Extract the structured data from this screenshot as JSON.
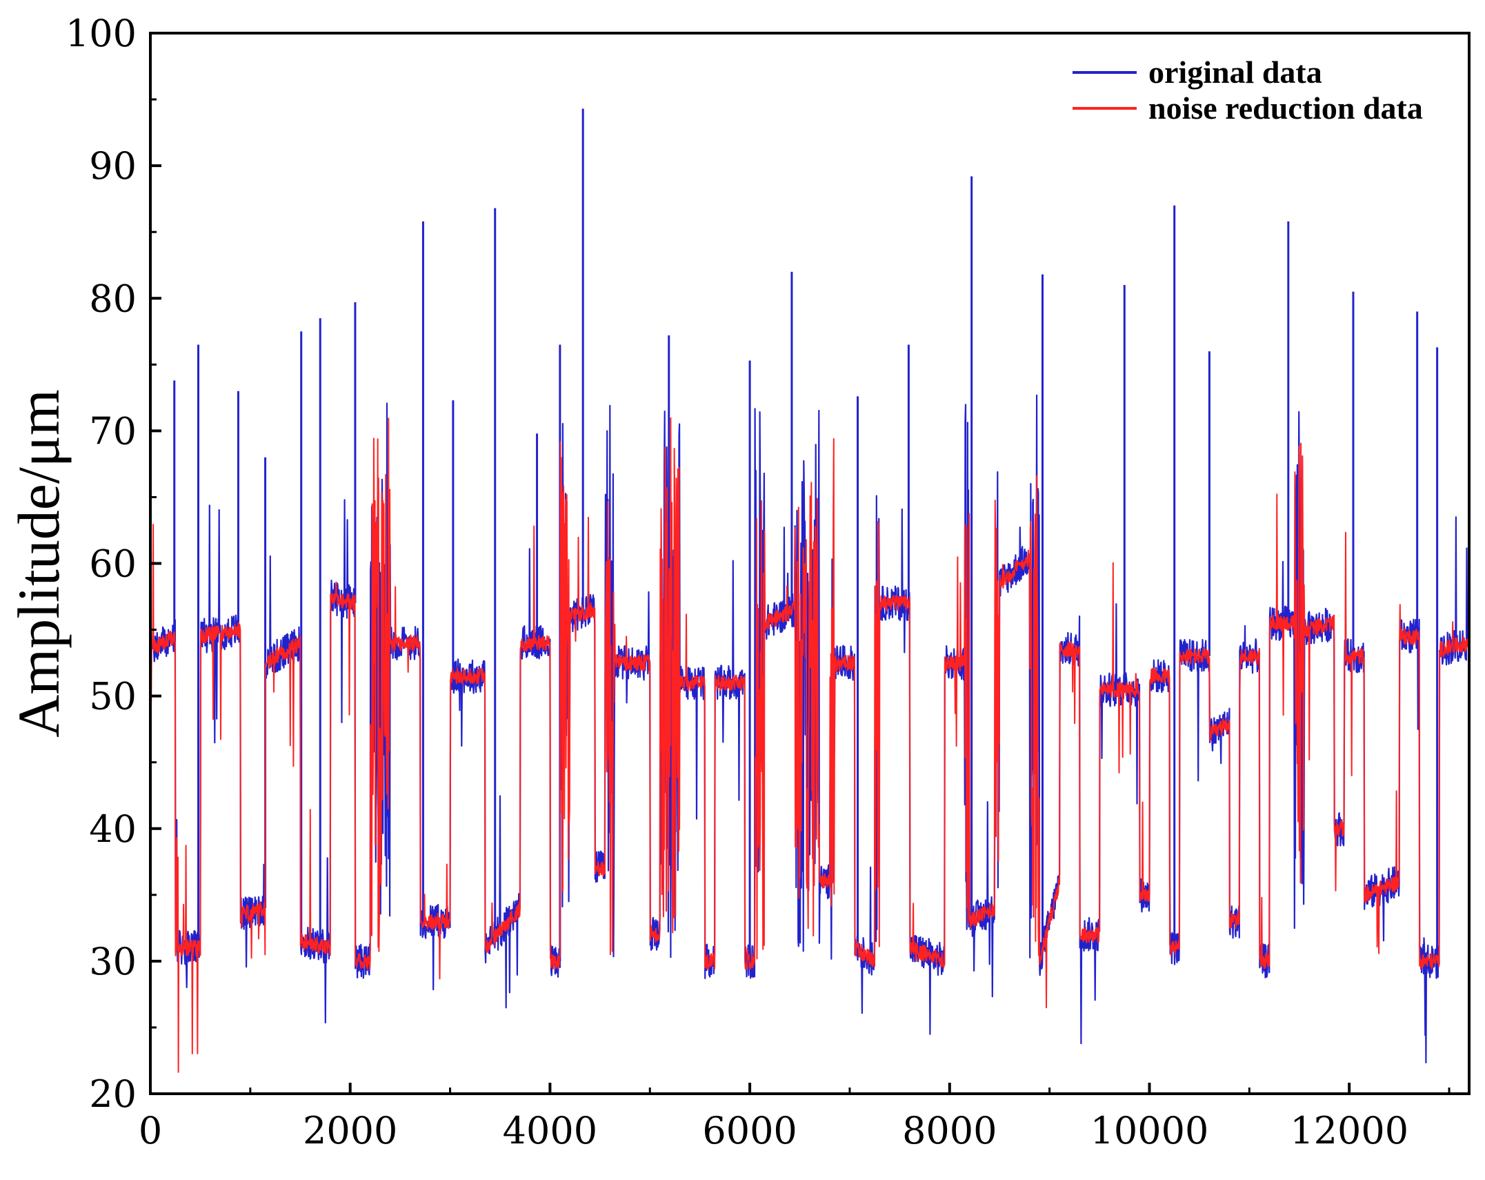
{
  "chart_data": {
    "type": "line",
    "title": "",
    "xlabel": "",
    "ylabel": "Amplitude/μm",
    "xlim": [
      0,
      13200
    ],
    "ylim": [
      20,
      100
    ],
    "xticks": [
      0,
      2000,
      4000,
      6000,
      8000,
      10000,
      12000
    ],
    "xticks_minor": [
      1000,
      3000,
      5000,
      7000,
      9000,
      11000,
      13000
    ],
    "yticks": [
      20,
      30,
      40,
      50,
      60,
      70,
      80,
      90,
      100
    ],
    "legend_position": "top-right",
    "colors": {
      "original": "#2222cc",
      "noise_reduction": "#ff2222",
      "axis": "#000000"
    },
    "series": [
      {
        "name": "original data",
        "color": "#2222cc"
      },
      {
        "name": "noise reduction data",
        "color": "#ff2222"
      }
    ],
    "baseline_segments": [
      {
        "x": [
          0,
          250
        ],
        "y": [
          53.5,
          54.5
        ]
      },
      {
        "x": [
          500,
          900
        ],
        "y": [
          54.5,
          55
        ]
      },
      {
        "x": [
          1150,
          1500
        ],
        "y": [
          52.5,
          54
        ]
      },
      {
        "x": [
          1800,
          2050
        ],
        "y": [
          57.5,
          57
        ]
      },
      {
        "x": [
          2400,
          2700
        ],
        "y": [
          54,
          54
        ]
      },
      {
        "x": [
          3000,
          3350
        ],
        "y": [
          51.5,
          51.5
        ]
      },
      {
        "x": [
          3700,
          4000
        ],
        "y": [
          54,
          54
        ]
      },
      {
        "x": [
          4200,
          4450
        ],
        "y": [
          56,
          56.5
        ]
      },
      {
        "x": [
          4650,
          5000
        ],
        "y": [
          52.5,
          52.5
        ]
      },
      {
        "x": [
          5300,
          5550
        ],
        "y": [
          51,
          51
        ]
      },
      {
        "x": [
          5650,
          5950
        ],
        "y": [
          51,
          51
        ]
      },
      {
        "x": [
          6150,
          6450
        ],
        "y": [
          55.5,
          56.5
        ]
      },
      {
        "x": [
          6850,
          7050
        ],
        "y": [
          52.5,
          52.5
        ]
      },
      {
        "x": [
          7300,
          7600
        ],
        "y": [
          57,
          57
        ]
      },
      {
        "x": [
          7950,
          8150
        ],
        "y": [
          52.5,
          52.5
        ]
      },
      {
        "x": [
          8500,
          8800
        ],
        "y": [
          58.5,
          60.5
        ]
      },
      {
        "x": [
          9100,
          9300
        ],
        "y": [
          53.5,
          53.5
        ]
      },
      {
        "x": [
          9500,
          9900
        ],
        "y": [
          50.5,
          50.5
        ]
      },
      {
        "x": [
          10000,
          10200
        ],
        "y": [
          51.5,
          51.5
        ]
      },
      {
        "x": [
          10300,
          10600
        ],
        "y": [
          53,
          53
        ]
      },
      {
        "x": [
          10600,
          10800
        ],
        "y": [
          47,
          48
        ]
      },
      {
        "x": [
          10900,
          11100
        ],
        "y": [
          53,
          53
        ]
      },
      {
        "x": [
          11200,
          11450
        ],
        "y": [
          55.5,
          55.5
        ]
      },
      {
        "x": [
          11550,
          11850
        ],
        "y": [
          55,
          55.5
        ]
      },
      {
        "x": [
          11950,
          12150
        ],
        "y": [
          53,
          53
        ]
      },
      {
        "x": [
          12500,
          12700
        ],
        "y": [
          54.5,
          54.5
        ]
      },
      {
        "x": [
          12900,
          13200
        ],
        "y": [
          53.5,
          54
        ]
      }
    ],
    "low_segments": [
      {
        "x": [
          250,
          500
        ],
        "y": [
          31,
          31
        ]
      },
      {
        "x": [
          900,
          1150
        ],
        "y": [
          33.5,
          34
        ]
      },
      {
        "x": [
          1500,
          1800
        ],
        "y": [
          31.5,
          31
        ]
      },
      {
        "x": [
          2050,
          2200
        ],
        "y": [
          30,
          30
        ]
      },
      {
        "x": [
          2700,
          3000
        ],
        "y": [
          33,
          33
        ]
      },
      {
        "x": [
          3350,
          3700
        ],
        "y": [
          31,
          34
        ]
      },
      {
        "x": [
          4000,
          4100
        ],
        "y": [
          30,
          30
        ]
      },
      {
        "x": [
          4450,
          4550
        ],
        "y": [
          37,
          37
        ]
      },
      {
        "x": [
          5000,
          5100
        ],
        "y": [
          32,
          32
        ]
      },
      {
        "x": [
          5550,
          5650
        ],
        "y": [
          30,
          30
        ]
      },
      {
        "x": [
          5950,
          6050
        ],
        "y": [
          30,
          30
        ]
      },
      {
        "x": [
          6700,
          6800
        ],
        "y": [
          36,
          36
        ]
      },
      {
        "x": [
          7050,
          7250
        ],
        "y": [
          31,
          30
        ]
      },
      {
        "x": [
          7600,
          7950
        ],
        "y": [
          31,
          30
        ]
      },
      {
        "x": [
          8200,
          8450
        ],
        "y": [
          33,
          34
        ]
      },
      {
        "x": [
          8900,
          9100
        ],
        "y": [
          30,
          36
        ]
      },
      {
        "x": [
          9300,
          9500
        ],
        "y": [
          32,
          32
        ]
      },
      {
        "x": [
          9900,
          10000
        ],
        "y": [
          35,
          35
        ]
      },
      {
        "x": [
          10200,
          10300
        ],
        "y": [
          31,
          31
        ]
      },
      {
        "x": [
          10800,
          10900
        ],
        "y": [
          33,
          33
        ]
      },
      {
        "x": [
          11100,
          11200
        ],
        "y": [
          30,
          30
        ]
      },
      {
        "x": [
          11850,
          11950
        ],
        "y": [
          40,
          40
        ]
      },
      {
        "x": [
          12150,
          12500
        ],
        "y": [
          35,
          36
        ]
      },
      {
        "x": [
          12700,
          12900
        ],
        "y": [
          30,
          30
        ]
      }
    ],
    "spikes": [
      {
        "x": 240,
        "y": 73.8
      },
      {
        "x": 480,
        "y": 76.5
      },
      {
        "x": 880,
        "y": 73
      },
      {
        "x": 1150,
        "y": 68
      },
      {
        "x": 1510,
        "y": 77.5
      },
      {
        "x": 1700,
        "y": 78.5
      },
      {
        "x": 2050,
        "y": 79.7
      },
      {
        "x": 2730,
        "y": 85.8
      },
      {
        "x": 3030,
        "y": 72.3
      },
      {
        "x": 3450,
        "y": 86.8
      },
      {
        "x": 3870,
        "y": 69.8
      },
      {
        "x": 4100,
        "y": 76.5
      },
      {
        "x": 4330,
        "y": 94.3
      },
      {
        "x": 5190,
        "y": 77.2
      },
      {
        "x": 6000,
        "y": 75.3
      },
      {
        "x": 6420,
        "y": 82
      },
      {
        "x": 7080,
        "y": 72.6
      },
      {
        "x": 7590,
        "y": 76.5
      },
      {
        "x": 8220,
        "y": 89.2
      },
      {
        "x": 8930,
        "y": 81.8
      },
      {
        "x": 9750,
        "y": 81
      },
      {
        "x": 10250,
        "y": 87
      },
      {
        "x": 10600,
        "y": 76
      },
      {
        "x": 11390,
        "y": 85.8
      },
      {
        "x": 12040,
        "y": 80.5
      },
      {
        "x": 12680,
        "y": 79
      },
      {
        "x": 12880,
        "y": 76.3
      }
    ]
  }
}
